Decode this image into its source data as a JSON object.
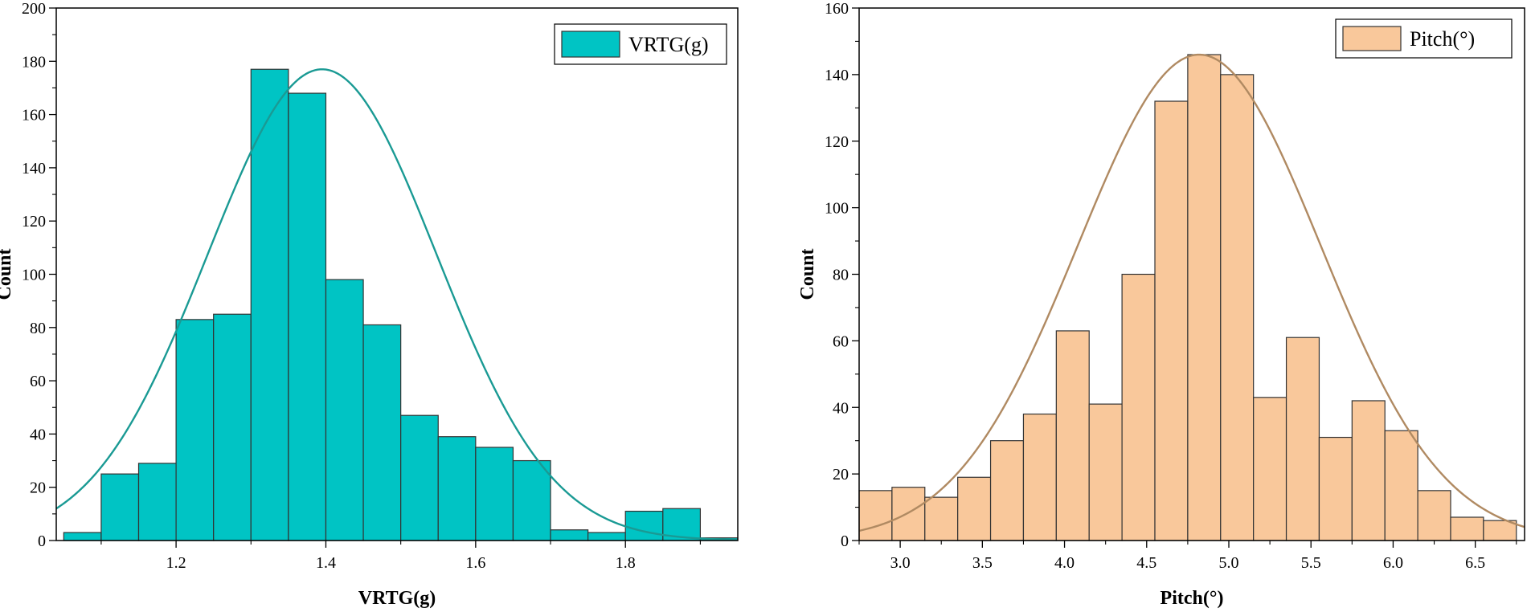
{
  "chart_data": [
    {
      "type": "bar",
      "subtype": "histogram-with-normal-fit",
      "title": "",
      "xlabel": "VRTG(g)",
      "ylabel": "Count",
      "xlim": [
        1.04,
        1.95
      ],
      "ylim": [
        0,
        200
      ],
      "xticks": [
        1.2,
        1.4,
        1.6,
        1.8
      ],
      "xtick_labels": [
        "1.2",
        "1.4",
        "1.6",
        "1.8"
      ],
      "yticks": [
        0,
        20,
        40,
        60,
        80,
        100,
        120,
        140,
        160,
        180,
        200
      ],
      "bin_width": 0.05,
      "bins": [
        {
          "x0": 1.05,
          "x1": 1.1,
          "count": 3
        },
        {
          "x0": 1.1,
          "x1": 1.15,
          "count": 25
        },
        {
          "x0": 1.15,
          "x1": 1.2,
          "count": 29
        },
        {
          "x0": 1.2,
          "x1": 1.25,
          "count": 83
        },
        {
          "x0": 1.25,
          "x1": 1.3,
          "count": 85
        },
        {
          "x0": 1.3,
          "x1": 1.35,
          "count": 177
        },
        {
          "x0": 1.35,
          "x1": 1.4,
          "count": 168
        },
        {
          "x0": 1.4,
          "x1": 1.45,
          "count": 98
        },
        {
          "x0": 1.45,
          "x1": 1.5,
          "count": 81
        },
        {
          "x0": 1.5,
          "x1": 1.55,
          "count": 47
        },
        {
          "x0": 1.55,
          "x1": 1.6,
          "count": 39
        },
        {
          "x0": 1.6,
          "x1": 1.65,
          "count": 35
        },
        {
          "x0": 1.65,
          "x1": 1.7,
          "count": 30
        },
        {
          "x0": 1.7,
          "x1": 1.75,
          "count": 4
        },
        {
          "x0": 1.75,
          "x1": 1.8,
          "count": 3
        },
        {
          "x0": 1.8,
          "x1": 1.85,
          "count": 11
        },
        {
          "x0": 1.85,
          "x1": 1.9,
          "count": 12
        },
        {
          "x0": 1.9,
          "x1": 1.95,
          "count": 1
        }
      ],
      "fit": {
        "mean": 1.395,
        "sd": 0.153,
        "peak": 177
      },
      "legend": {
        "label": "VRTG(g)",
        "position": "top-right"
      },
      "bar_color": "#00C4C4",
      "bar_edge": "#333333",
      "curve_color": "#1A9A94",
      "grid": false
    },
    {
      "type": "bar",
      "subtype": "histogram-with-normal-fit",
      "title": "",
      "xlabel": "Pitch(°)",
      "ylabel": "Count",
      "xlim": [
        2.75,
        6.8
      ],
      "ylim": [
        0,
        160
      ],
      "xticks": [
        3.0,
        3.5,
        4.0,
        4.5,
        5.0,
        5.5,
        6.0,
        6.5
      ],
      "xtick_labels": [
        "3.0",
        "3.5",
        "4.0",
        "4.5",
        "5.0",
        "5.5",
        "6.0",
        "6.5"
      ],
      "yticks": [
        0,
        20,
        40,
        60,
        80,
        100,
        120,
        140,
        160
      ],
      "bin_width": 0.2,
      "bins": [
        {
          "x0": 2.75,
          "x1": 2.95,
          "count": 15
        },
        {
          "x0": 2.95,
          "x1": 3.15,
          "count": 16
        },
        {
          "x0": 3.15,
          "x1": 3.35,
          "count": 13
        },
        {
          "x0": 3.35,
          "x1": 3.55,
          "count": 19
        },
        {
          "x0": 3.55,
          "x1": 3.75,
          "count": 30
        },
        {
          "x0": 3.75,
          "x1": 3.95,
          "count": 38
        },
        {
          "x0": 3.95,
          "x1": 4.15,
          "count": 63
        },
        {
          "x0": 4.15,
          "x1": 4.35,
          "count": 41
        },
        {
          "x0": 4.35,
          "x1": 4.55,
          "count": 80
        },
        {
          "x0": 4.55,
          "x1": 4.75,
          "count": 132
        },
        {
          "x0": 4.75,
          "x1": 4.95,
          "count": 146
        },
        {
          "x0": 4.95,
          "x1": 5.15,
          "count": 140
        },
        {
          "x0": 5.15,
          "x1": 5.35,
          "count": 43
        },
        {
          "x0": 5.35,
          "x1": 5.55,
          "count": 61
        },
        {
          "x0": 5.55,
          "x1": 5.75,
          "count": 31
        },
        {
          "x0": 5.75,
          "x1": 5.95,
          "count": 42
        },
        {
          "x0": 5.95,
          "x1": 6.15,
          "count": 33
        },
        {
          "x0": 6.15,
          "x1": 6.35,
          "count": 15
        },
        {
          "x0": 6.35,
          "x1": 6.55,
          "count": 7
        },
        {
          "x0": 6.55,
          "x1": 6.75,
          "count": 6
        }
      ],
      "fit": {
        "mean": 4.82,
        "sd": 0.74,
        "peak": 146
      },
      "legend": {
        "label": "Pitch(°)",
        "position": "top-right"
      },
      "bar_color": "#F9C89B",
      "bar_edge": "#333333",
      "curve_color": "#B08A62",
      "grid": false
    }
  ]
}
